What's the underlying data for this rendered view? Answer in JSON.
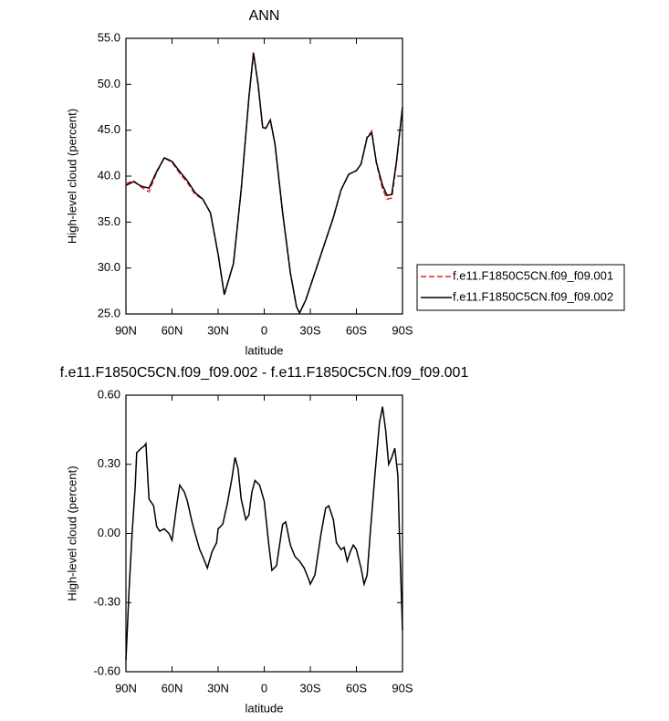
{
  "chart_data": [
    {
      "type": "line",
      "title": "ANN",
      "xlabel": "latitude",
      "ylabel": "High-level cloud (percent)",
      "x": [
        90,
        85,
        80,
        75,
        70,
        65,
        60,
        55,
        50,
        45,
        40,
        35,
        30,
        26,
        20,
        15,
        10,
        7,
        4,
        1,
        -1,
        -4,
        -7,
        -12,
        -17,
        -21,
        -23,
        -27,
        -35,
        -45,
        -50,
        -55,
        -60,
        -63,
        -67,
        -70,
        -73,
        -77,
        -80,
        -83,
        -86,
        -90
      ],
      "series": [
        {
          "name": "f.e11.F1850C5CN.f09_f09.001",
          "color": "#e8232a",
          "line_style": "dashed",
          "values": [
            39.2,
            39.5,
            38.8,
            38.3,
            40.4,
            42.0,
            41.5,
            40.3,
            39.3,
            38.0,
            37.5,
            36.0,
            31.5,
            27.1,
            30.5,
            38.5,
            48.5,
            53.5,
            50.0,
            45.3,
            45.2,
            46.1,
            43.5,
            36.0,
            29.5,
            25.8,
            25.1,
            26.5,
            30.5,
            35.5,
            38.5,
            40.2,
            40.6,
            41.3,
            44.3,
            44.9,
            41.4,
            38.6,
            37.5,
            37.6,
            41.3,
            47.5
          ]
        },
        {
          "name": "f.e11.F1850C5CN.f09_f09.002",
          "color": "#000000",
          "line_style": "solid",
          "values": [
            39.0,
            39.4,
            38.9,
            38.7,
            40.5,
            42.0,
            41.6,
            40.5,
            39.5,
            38.2,
            37.5,
            36.0,
            31.5,
            27.1,
            30.5,
            38.5,
            48.5,
            53.4,
            50.0,
            45.3,
            45.2,
            46.1,
            43.5,
            36.0,
            29.5,
            25.8,
            25.1,
            26.5,
            30.5,
            35.5,
            38.5,
            40.2,
            40.6,
            41.3,
            44.2,
            44.7,
            41.5,
            39.0,
            37.9,
            38.0,
            41.5,
            47.5
          ]
        }
      ],
      "xlim": [
        90,
        -90
      ],
      "xticks": [
        {
          "value": 90,
          "label": "90N"
        },
        {
          "value": 60,
          "label": "60N"
        },
        {
          "value": 30,
          "label": "30N"
        },
        0,
        {
          "value": -30,
          "label": "30S"
        },
        {
          "value": -60,
          "label": "60S"
        },
        {
          "value": -90,
          "label": "90S"
        }
      ],
      "ylim": [
        25,
        55
      ],
      "yticks": [
        {
          "value": 25,
          "label": "25.0"
        },
        {
          "value": 30,
          "label": "30.0"
        },
        {
          "value": 35,
          "label": "35.0"
        },
        {
          "value": 40,
          "label": "40.0"
        },
        {
          "value": 45,
          "label": "45.0"
        },
        {
          "value": 50,
          "label": "50.0"
        },
        {
          "value": 55,
          "label": "55.0"
        }
      ],
      "legend": "outside-right"
    },
    {
      "type": "line",
      "title": "f.e11.F1850C5CN.f09_f09.002 - f.e11.F1850C5CN.f09_f09.001",
      "xlabel": "latitude",
      "ylabel": "High-level cloud (percent)",
      "x": [
        90,
        88,
        86,
        84,
        83,
        80,
        78,
        77,
        75,
        72,
        70,
        68,
        65,
        62,
        60,
        57,
        55,
        52,
        50,
        47,
        45,
        42,
        40,
        37,
        34,
        31,
        30,
        27,
        24,
        21,
        19,
        17,
        15,
        12,
        10,
        8,
        6,
        3,
        0,
        -3,
        -5,
        -8,
        -10,
        -12,
        -14,
        -17,
        -20,
        -23,
        -26,
        -29,
        -30,
        -33,
        -37,
        -40,
        -42,
        -45,
        -47,
        -50,
        -52,
        -54,
        -56,
        -58,
        -60,
        -63,
        -65,
        -67,
        -69,
        -72,
        -75,
        -77,
        -79,
        -81,
        -83,
        -85,
        -87,
        -88,
        -90
      ],
      "values": [
        -0.55,
        -0.25,
        0.0,
        0.2,
        0.35,
        0.37,
        0.38,
        0.39,
        0.15,
        0.12,
        0.03,
        0.01,
        0.02,
        0.0,
        -0.03,
        0.12,
        0.21,
        0.18,
        0.14,
        0.05,
        0.0,
        -0.07,
        -0.1,
        -0.15,
        -0.08,
        -0.04,
        0.02,
        0.04,
        0.13,
        0.24,
        0.33,
        0.28,
        0.15,
        0.06,
        0.08,
        0.18,
        0.23,
        0.21,
        0.14,
        -0.05,
        -0.16,
        -0.14,
        -0.05,
        0.04,
        0.05,
        -0.05,
        -0.1,
        -0.12,
        -0.15,
        -0.2,
        -0.22,
        -0.18,
        0.0,
        0.11,
        0.12,
        0.06,
        -0.04,
        -0.07,
        -0.06,
        -0.12,
        -0.08,
        -0.05,
        -0.07,
        -0.15,
        -0.22,
        -0.18,
        0.0,
        0.25,
        0.48,
        0.55,
        0.45,
        0.3,
        0.33,
        0.37,
        0.25,
        0.0,
        -0.42
      ],
      "color": "#000000",
      "line_style": "solid",
      "xlim": [
        90,
        -90
      ],
      "xticks": [
        {
          "value": 90,
          "label": "90N"
        },
        {
          "value": 60,
          "label": "60N"
        },
        {
          "value": 30,
          "label": "30N"
        },
        0,
        {
          "value": -30,
          "label": "30S"
        },
        {
          "value": -60,
          "label": "60S"
        },
        {
          "value": -90,
          "label": "90S"
        }
      ],
      "ylim": [
        -0.6,
        0.6
      ],
      "yticks": [
        {
          "value": -0.6,
          "label": "-0.60"
        },
        {
          "value": -0.3,
          "label": "-0.30"
        },
        {
          "value": 0,
          "label": "0.00"
        },
        {
          "value": 0.3,
          "label": "0.30"
        },
        {
          "value": 0.6,
          "label": "0.60"
        }
      ]
    }
  ]
}
